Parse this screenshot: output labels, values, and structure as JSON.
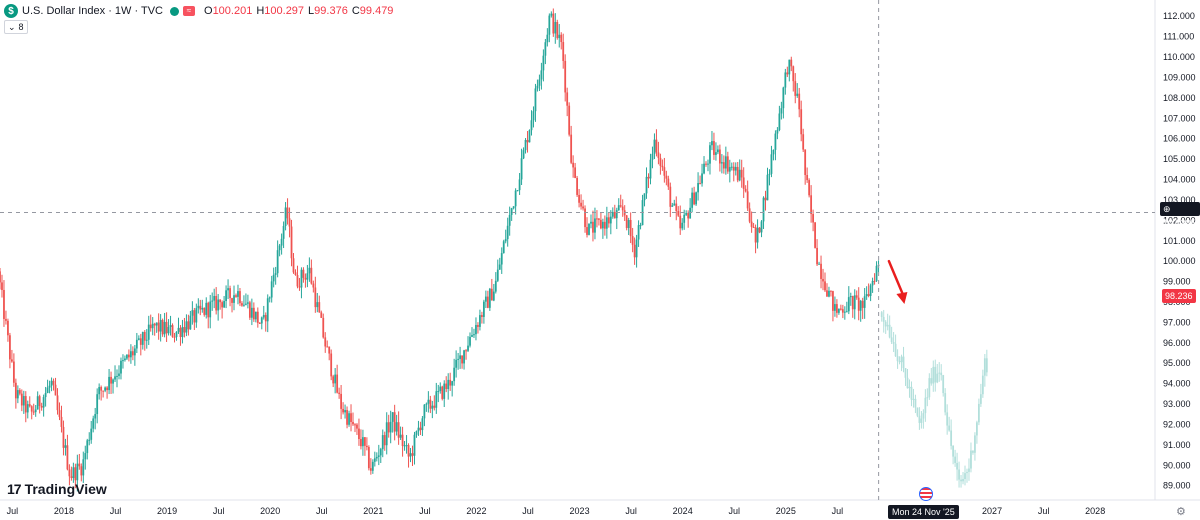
{
  "header": {
    "symbol_logo": "$",
    "title": "U.S. Dollar Index · 1W · TVC",
    "open_label": "O",
    "open": "100.201",
    "high_label": "H",
    "high": "100.297",
    "low_label": "L",
    "low": "99.376",
    "close_label": "C",
    "close": "99.479",
    "indicator_count": "8"
  },
  "watermark": {
    "brand": "TradingView",
    "mark": "17"
  },
  "colors": {
    "up": "#26a69a",
    "down": "#ef5350",
    "projection": "#b2dfdb",
    "arrow": "#e91e1e",
    "crosshair": "#9598a1"
  },
  "crosshair_price": "102.385",
  "last_price": "98.236",
  "crosshair_date": "Mon 24 Nov '25",
  "chart_data": {
    "type": "candlestick",
    "title": "U.S. Dollar Index · 1W · TVC",
    "interval": "1W",
    "ylim": [
      88.3,
      112.6
    ],
    "xlim": [
      2017.38,
      2028.58
    ],
    "y_ticks": [
      "89.000",
      "90.000",
      "91.000",
      "92.000",
      "93.000",
      "94.000",
      "95.000",
      "96.000",
      "97.000",
      "98.000",
      "99.000",
      "100.000",
      "101.000",
      "102.000",
      "103.000",
      "104.000",
      "105.000",
      "106.000",
      "107.000",
      "108.000",
      "109.000",
      "110.000",
      "111.000",
      "112.000"
    ],
    "x_ticks": [
      {
        "label": "Jul",
        "t": 2017.5
      },
      {
        "label": "2018",
        "t": 2018.0
      },
      {
        "label": "Jul",
        "t": 2018.5
      },
      {
        "label": "2019",
        "t": 2019.0
      },
      {
        "label": "Jul",
        "t": 2019.5
      },
      {
        "label": "2020",
        "t": 2020.0
      },
      {
        "label": "Jul",
        "t": 2020.5
      },
      {
        "label": "2021",
        "t": 2021.0
      },
      {
        "label": "Jul",
        "t": 2021.5
      },
      {
        "label": "2022",
        "t": 2022.0
      },
      {
        "label": "Jul",
        "t": 2022.5
      },
      {
        "label": "2023",
        "t": 2023.0
      },
      {
        "label": "Jul",
        "t": 2023.5
      },
      {
        "label": "2024",
        "t": 2024.0
      },
      {
        "label": "Jul",
        "t": 2024.5
      },
      {
        "label": "2025",
        "t": 2025.0
      },
      {
        "label": "Jul",
        "t": 2025.5
      },
      {
        "label": "2027",
        "t": 2027.0
      },
      {
        "label": "Jul",
        "t": 2027.5
      },
      {
        "label": "2028",
        "t": 2028.0
      }
    ],
    "price_path": [
      [
        2017.38,
        99.5
      ],
      [
        2017.55,
        93.5
      ],
      [
        2017.7,
        92.5
      ],
      [
        2017.9,
        94.0
      ],
      [
        2018.08,
        89.5
      ],
      [
        2018.2,
        90.0
      ],
      [
        2018.35,
        93.5
      ],
      [
        2018.6,
        95.0
      ],
      [
        2018.9,
        96.8
      ],
      [
        2019.1,
        96.5
      ],
      [
        2019.35,
        97.5
      ],
      [
        2019.7,
        98.5
      ],
      [
        2019.95,
        96.8
      ],
      [
        2020.18,
        102.5
      ],
      [
        2020.26,
        99.0
      ],
      [
        2020.4,
        99.5
      ],
      [
        2020.55,
        96.0
      ],
      [
        2020.7,
        93.0
      ],
      [
        2020.92,
        91.0
      ],
      [
        2021.0,
        89.8
      ],
      [
        2021.2,
        92.3
      ],
      [
        2021.37,
        90.3
      ],
      [
        2021.5,
        92.5
      ],
      [
        2021.75,
        94.0
      ],
      [
        2021.95,
        96.2
      ],
      [
        2022.2,
        98.8
      ],
      [
        2022.4,
        103.5
      ],
      [
        2022.55,
        107.0
      ],
      [
        2022.73,
        112.0
      ],
      [
        2022.85,
        110.5
      ],
      [
        2022.95,
        104.5
      ],
      [
        2023.1,
        101.5
      ],
      [
        2023.3,
        102.0
      ],
      [
        2023.45,
        102.5
      ],
      [
        2023.55,
        100.5
      ],
      [
        2023.75,
        106.0
      ],
      [
        2023.9,
        103.0
      ],
      [
        2024.0,
        101.5
      ],
      [
        2024.15,
        103.5
      ],
      [
        2024.3,
        105.5
      ],
      [
        2024.45,
        104.8
      ],
      [
        2024.6,
        104.0
      ],
      [
        2024.73,
        100.8
      ],
      [
        2024.85,
        104.2
      ],
      [
        2025.0,
        108.5
      ],
      [
        2025.04,
        109.8
      ],
      [
        2025.15,
        107.5
      ],
      [
        2025.2,
        104.5
      ],
      [
        2025.33,
        100.0
      ],
      [
        2025.5,
        97.5
      ],
      [
        2025.65,
        98.0
      ],
      [
        2025.78,
        97.8
      ],
      [
        2025.9,
        99.7
      ]
    ],
    "projection_path": [
      [
        2025.93,
        97.5
      ],
      [
        2026.0,
        97.0
      ],
      [
        2026.1,
        95.5
      ],
      [
        2026.2,
        94.0
      ],
      [
        2026.32,
        91.8
      ],
      [
        2026.42,
        94.2
      ],
      [
        2026.52,
        94.8
      ],
      [
        2026.6,
        91.5
      ],
      [
        2026.7,
        89.0
      ],
      [
        2026.8,
        90.0
      ],
      [
        2026.88,
        92.5
      ],
      [
        2026.95,
        95.0
      ]
    ],
    "crosshair": {
      "date": "Mon 24 Nov '25",
      "price": 102.385
    },
    "last_price": 98.236
  }
}
